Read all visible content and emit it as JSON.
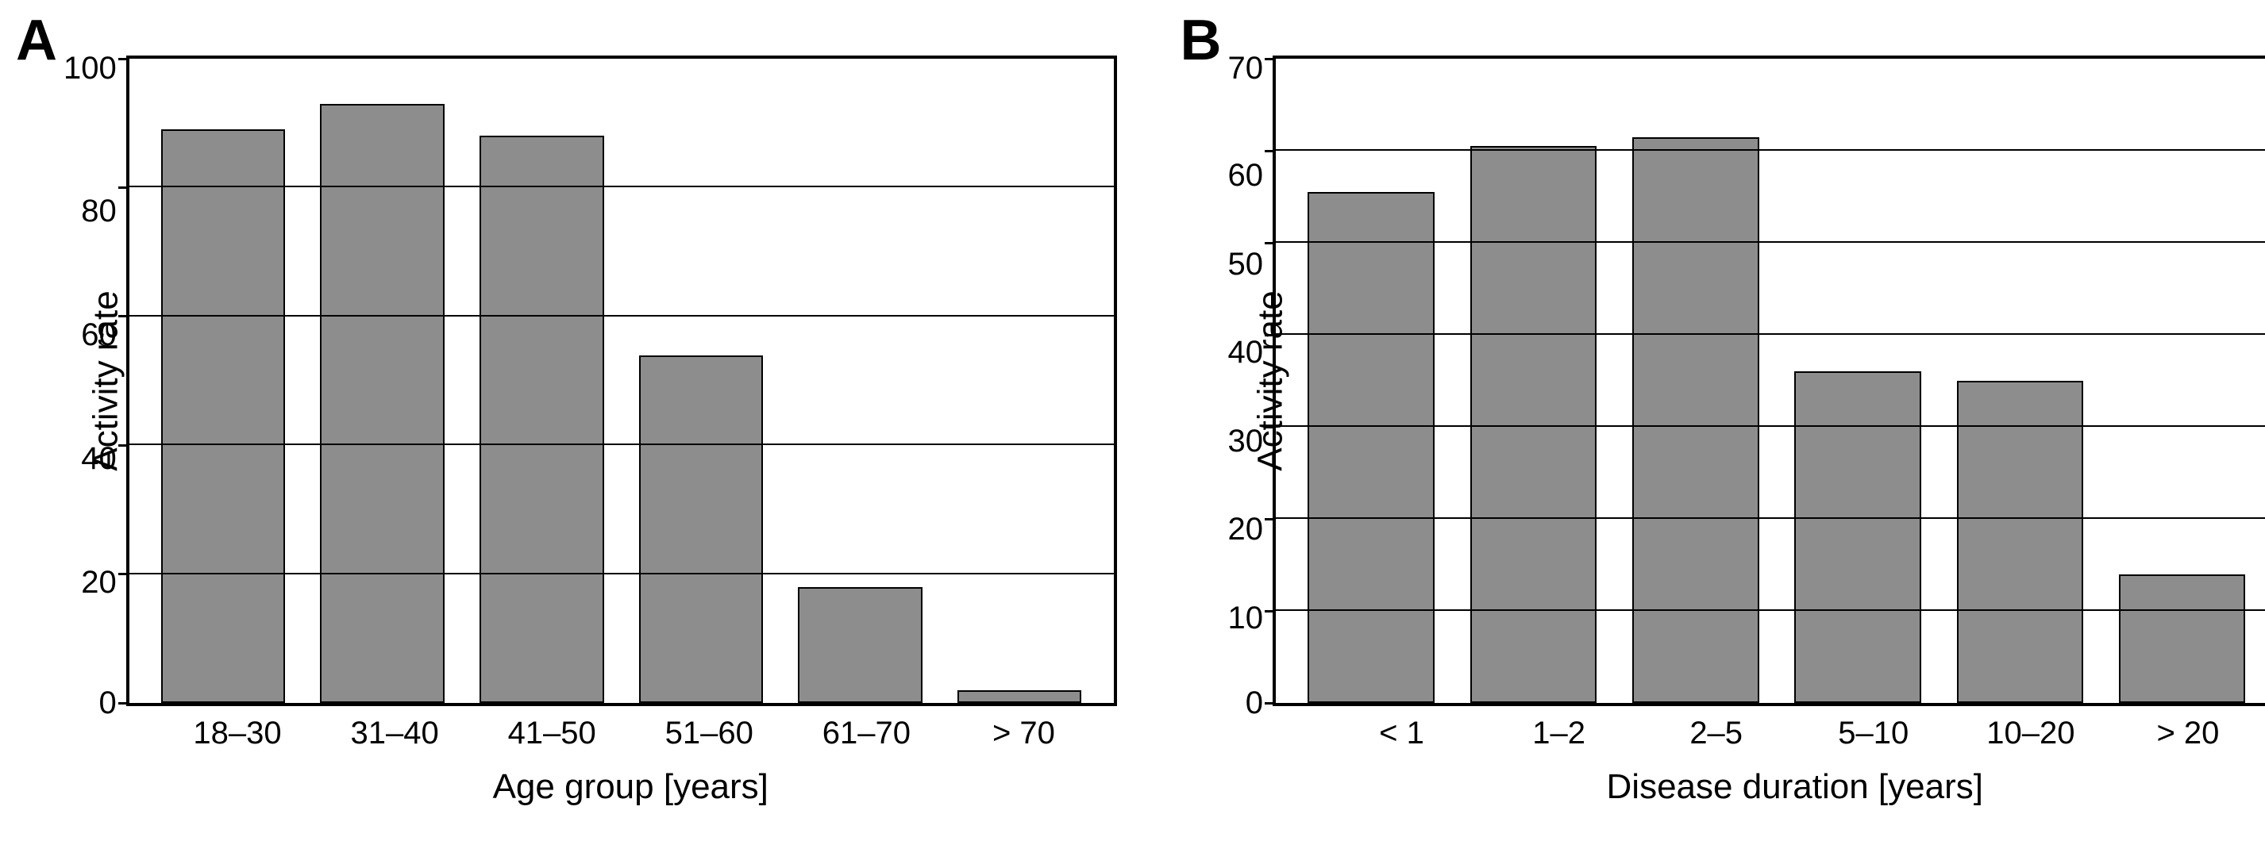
{
  "panelA": {
    "letter": "A",
    "type": "bar",
    "ylabel": "Activity rate",
    "xlabel": "Age group [years]",
    "ylim": [
      0,
      100
    ],
    "ytick_step": 20,
    "yticks": [
      100,
      80,
      60,
      40,
      20,
      0
    ],
    "categories": [
      "18–30",
      "31–40",
      "41–50",
      "51–60",
      "61–70",
      "> 70"
    ],
    "values": [
      89,
      93,
      88,
      54,
      18,
      2
    ],
    "bar_color": "#8d8d8d",
    "bar_border_color": "#000000",
    "background_color": "#ffffff",
    "grid_color": "#000000",
    "axis_color": "#000000",
    "axis_fontsize": 40,
    "label_fontsize": 44,
    "letter_fontsize": 72,
    "bar_width_pct": 13
  },
  "panelB": {
    "letter": "B",
    "type": "bar",
    "ylabel": "Activity rate",
    "xlabel": "Disease duration [years]",
    "ylim": [
      0,
      70
    ],
    "ytick_step": 10,
    "yticks": [
      70,
      60,
      50,
      40,
      30,
      20,
      10,
      0
    ],
    "categories": [
      "< 1",
      "1–2",
      "2–5",
      "5–10",
      "10–20",
      "> 20"
    ],
    "values": [
      55.5,
      60.5,
      61.5,
      36,
      35,
      14
    ],
    "bar_color": "#8d8d8d",
    "bar_border_color": "#000000",
    "background_color": "#ffffff",
    "grid_color": "#000000",
    "axis_color": "#000000",
    "axis_fontsize": 40,
    "label_fontsize": 44,
    "letter_fontsize": 72,
    "bar_width_pct": 13
  }
}
